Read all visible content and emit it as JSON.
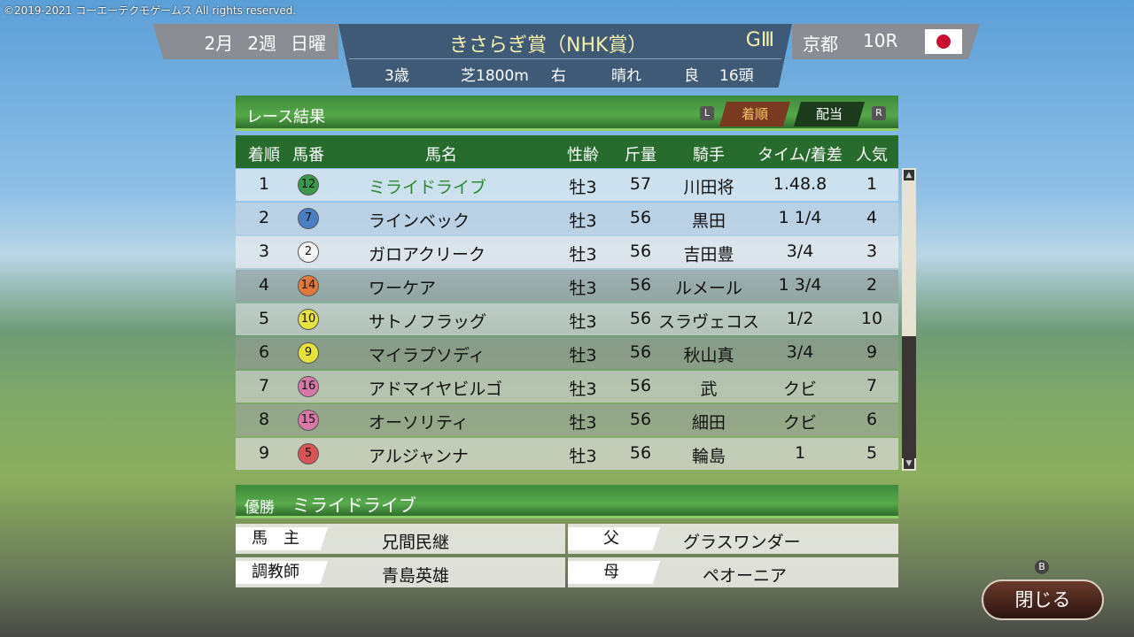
{
  "copyright": "©2019-2021 コーエーテクモゲームス All rights reserved.",
  "race": {
    "month": "2月",
    "week": "2週",
    "day": "日曜",
    "name": "きさらぎ賞（NHK賞）",
    "grade": "GⅢ",
    "age": "3歳",
    "course": "芝1800m",
    "direction": "右",
    "weather": "晴れ",
    "ground": "良",
    "runners": "16頭",
    "venue": "京都",
    "race_no": "10R",
    "flag": "japan-flag"
  },
  "panel": {
    "title": "レース結果",
    "key_left": "L",
    "key_right": "R",
    "tabs": [
      {
        "label": "着順",
        "active": true
      },
      {
        "label": "配当",
        "active": false
      }
    ]
  },
  "table": {
    "headers": [
      "着順",
      "馬番",
      "馬名",
      "性齢",
      "斤量",
      "騎手",
      "タイム/着差",
      "人気"
    ],
    "rows": [
      {
        "rank": "1",
        "num": "12",
        "color": "#3a9a4a",
        "name": "ミライドライブ",
        "sex": "牡3",
        "weight": "57",
        "jockey": "川田将",
        "time": "1.48.8",
        "pop": "1"
      },
      {
        "rank": "2",
        "num": "7",
        "color": "#4a7fc4",
        "name": "ラインベック",
        "sex": "牡3",
        "weight": "56",
        "jockey": "黒田",
        "time": "1 1/4",
        "pop": "4"
      },
      {
        "rank": "3",
        "num": "2",
        "color": "#f4f4f4",
        "name": "ガロアクリーク",
        "sex": "牡3",
        "weight": "56",
        "jockey": "吉田豊",
        "time": "3/4",
        "pop": "3"
      },
      {
        "rank": "4",
        "num": "14",
        "color": "#e07a3a",
        "name": "ワーケア",
        "sex": "牡3",
        "weight": "56",
        "jockey": "ルメール",
        "time": "1 3/4",
        "pop": "2"
      },
      {
        "rank": "5",
        "num": "10",
        "color": "#e8e23c",
        "name": "サトノフラッグ",
        "sex": "牡3",
        "weight": "56",
        "jockey": "スラヴェコス",
        "time": "1/2",
        "pop": "10"
      },
      {
        "rank": "6",
        "num": "9",
        "color": "#e8e23c",
        "name": "マイラプソディ",
        "sex": "牡3",
        "weight": "56",
        "jockey": "秋山真",
        "time": "3/4",
        "pop": "9"
      },
      {
        "rank": "7",
        "num": "16",
        "color": "#d878a8",
        "name": "アドマイヤビルゴ",
        "sex": "牡3",
        "weight": "56",
        "jockey": "武",
        "time": "クビ",
        "pop": "7"
      },
      {
        "rank": "8",
        "num": "15",
        "color": "#d878a8",
        "name": "オーソリティ",
        "sex": "牡3",
        "weight": "56",
        "jockey": "細田",
        "time": "クビ",
        "pop": "6"
      },
      {
        "rank": "9",
        "num": "5",
        "color": "#d85454",
        "name": "アルジャンナ",
        "sex": "牡3",
        "weight": "56",
        "jockey": "輪島",
        "time": "1",
        "pop": "5"
      }
    ]
  },
  "winner": {
    "label": "優勝",
    "name": "ミライドライブ",
    "owner_label": "馬　主",
    "owner": "兄間民継",
    "trainer_label": "調教師",
    "trainer": "青島英雄",
    "sire_label": "父",
    "sire": "グラスワンダー",
    "dam_label": "母",
    "dam": "ペオーニア"
  },
  "close": {
    "key": "B",
    "label": "閉じる"
  }
}
